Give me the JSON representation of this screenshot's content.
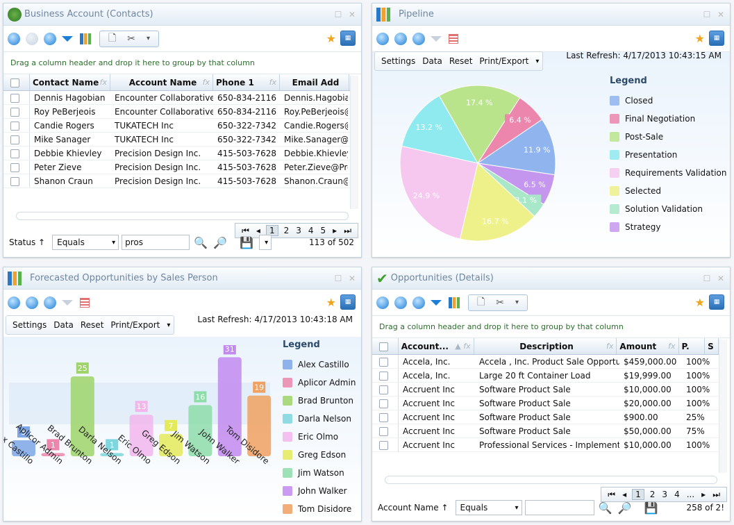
{
  "contacts": {
    "title": "Business Account (Contacts)",
    "hint": "Drag a column header and drop it here to group by that column",
    "columns": [
      "Contact Name",
      "Account Name",
      "Phone 1",
      "Email Add"
    ],
    "rows": [
      [
        "Dennis Hagobian",
        "Encounter Collaborative",
        "650-834-2116",
        "Dennis.Hagobia"
      ],
      [
        "Roy PeBerjeois",
        "Encounter Collaborative",
        "650-834-2116",
        "Roy.PeBerjeois@"
      ],
      [
        "Candie Rogers",
        "TUKATECH Inc",
        "650-322-7342",
        "Candie.Rogers@"
      ],
      [
        "Mike Sanager",
        "TUKATECH Inc",
        "650-322-7342",
        "Mike.Sanager@T"
      ],
      [
        "Debbie Khievley",
        "Precision Design Inc.",
        "415-503-7628",
        "Debbie.Khievley"
      ],
      [
        "Peter Zieve",
        "Precision Design Inc.",
        "415-503-7628",
        "Peter.Zieve@Pre"
      ],
      [
        "Shanon Craun",
        "Precision Design Inc.",
        "415-503-7628",
        "Shanon.Craun@"
      ]
    ],
    "pages": [
      "1",
      "2",
      "3",
      "4",
      "5"
    ],
    "filter_label": "Status ↑",
    "filter_op": "Equals",
    "filter_value": "pros",
    "count": "113 of 502"
  },
  "pipeline": {
    "title": "Pipeline",
    "tools": [
      "Settings",
      "Data",
      "Reset",
      "Print/Export"
    ],
    "refresh": "Last Refresh: 4/17/2013 10:43:15 AM"
  },
  "forecast": {
    "title": "Forecasted Opportunities by Sales Person",
    "tools": [
      "Settings",
      "Data",
      "Reset",
      "Print/Export"
    ],
    "refresh": "Last Refresh: 4/17/2013 10:43:18 AM"
  },
  "opps": {
    "title": "Opportunities (Details)",
    "hint": "Drag a column header and drop it here to group by that column",
    "columns": [
      "Account...",
      "Description",
      "Amount",
      "P.",
      "S"
    ],
    "rows": [
      [
        "Accela, Inc.",
        "Accela , Inc. Product Sale Opportu",
        "$459,000.00",
        "100%"
      ],
      [
        "Accela, Inc.",
        "Large 20 ft Container Load",
        "$19,999.00",
        "100%"
      ],
      [
        "Accruent Inc",
        "Software Product Sale",
        "$10,000.00",
        "100%"
      ],
      [
        "Accruent Inc",
        "Software Product Sale",
        "$20,000.00",
        "100%"
      ],
      [
        "Accruent Inc",
        "Software Product Sale",
        "$900.00",
        "25%"
      ],
      [
        "Accruent Inc",
        "Software Product Sale",
        "$50,000.00",
        "75%"
      ],
      [
        "Accruent Inc",
        "Professional Services - Implementa",
        "$10,000.00",
        "100%"
      ]
    ],
    "pages": [
      "1",
      "2",
      "3",
      "4",
      "..."
    ],
    "filter_label": "Account Name ↑",
    "filter_op": "Equals",
    "filter_value": "",
    "count": "258 of 2!"
  },
  "chart_data": [
    {
      "type": "pie",
      "legend_title": "Legend",
      "labels": [
        "Closed",
        "Final Negotiation",
        "Post-Sale",
        "Presentation",
        "Requirements Validation",
        "Selected",
        "Solution Validation",
        "Strategy"
      ],
      "values": [
        11.9,
        6.4,
        17.4,
        13.2,
        24.9,
        16.7,
        3.1,
        6.5
      ],
      "value_labels": [
        "11.9 %",
        "6.4 %",
        "17.4 %",
        "13.2 %",
        "24.9 %",
        "16.7 %",
        "3.1 %",
        "6.5 %"
      ],
      "colors": [
        "#8fb4ee",
        "#ec86ac",
        "#b9e48c",
        "#8eeaee",
        "#f6c8ef",
        "#eef08a",
        "#a8e8c8",
        "#c596ee"
      ]
    },
    {
      "type": "bar",
      "legend_title": "Legend",
      "categories": [
        "Alex Castillo",
        "Aplicor Admin",
        "Brad Brunton",
        "Darla Nelson",
        "Eric Olmo",
        "Greg Edson",
        "Jim Watson",
        "John Walker",
        "Tom Disidore"
      ],
      "values": [
        5,
        1,
        25,
        1,
        13,
        7,
        16,
        31,
        19
      ],
      "colors": [
        "#7ea6e6",
        "#ec86ac",
        "#9ed46a",
        "#7ed6de",
        "#f2b6ec",
        "#e4ea5a",
        "#8edcaa",
        "#c28aee",
        "#f0a060"
      ]
    }
  ]
}
